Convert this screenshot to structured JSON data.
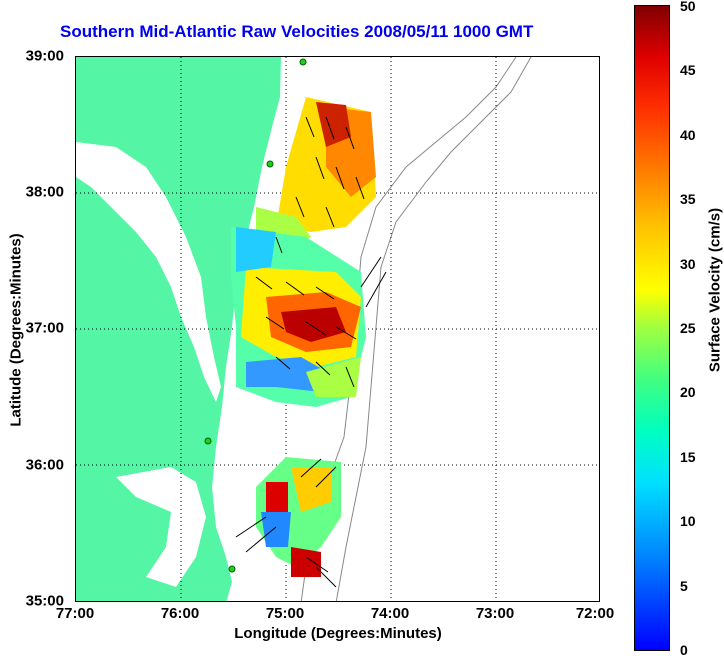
{
  "title": "Southern Mid-Atlantic Raw Velocities 2008/05/11 1000 GMT",
  "x_axis": {
    "label": "Longitude (Degrees:Minutes)",
    "ticks": [
      "77:00",
      "76:00",
      "75:00",
      "74:00",
      "73:00",
      "72:00"
    ]
  },
  "y_axis": {
    "label": "Latitude (Degrees:Minutes)",
    "ticks": [
      "39:00",
      "38:00",
      "37:00",
      "36:00",
      "35:00"
    ]
  },
  "colorbar": {
    "label": "Surface Velocity (cm/s)",
    "ticks": [
      "50",
      "45",
      "40",
      "35",
      "30",
      "25",
      "20",
      "15",
      "10",
      "5",
      "0"
    ]
  },
  "colors": {
    "land": "#55f5a6",
    "title": "#0000ee",
    "station": "#22cc22",
    "bathymetry": "#888888"
  },
  "regions": [
    {
      "name": "northern current field",
      "velocity_range_cms": [
        12,
        45
      ]
    },
    {
      "name": "central current field",
      "velocity_range_cms": [
        5,
        48
      ]
    },
    {
      "name": "southern current field",
      "velocity_range_cms": [
        5,
        50
      ]
    }
  ]
}
